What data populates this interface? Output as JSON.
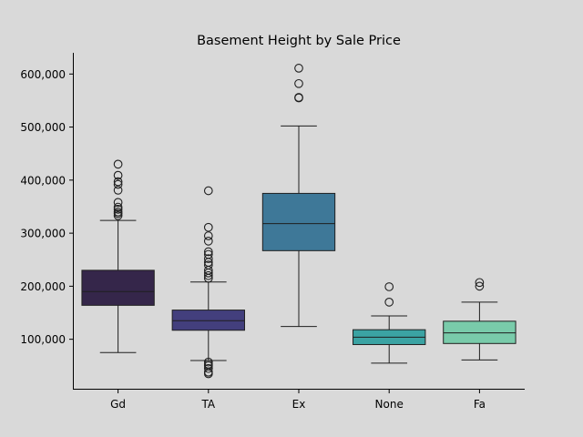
{
  "chart_data": {
    "type": "boxplot",
    "title": "Basement Height by Sale Price",
    "xlabel": "",
    "ylabel": "",
    "ylim": [
      5000,
      640000
    ],
    "yticks": [
      100000,
      200000,
      300000,
      400000,
      500000,
      600000
    ],
    "ytick_labels": [
      "100,000",
      "200,000",
      "300,000",
      "400,000",
      "500,000",
      "600,000"
    ],
    "grid": false,
    "legend": "none",
    "categories": [
      "Gd",
      "TA",
      "Ex",
      "None",
      "Fa"
    ],
    "boxes": [
      {
        "category": "Gd",
        "color": "#35264a",
        "whisker_low": 75000,
        "q1": 164000,
        "median": 190000,
        "q3": 230000,
        "whisker_high": 324000,
        "outliers": [
          333000,
          337000,
          340000,
          345000,
          349000,
          358000,
          381000,
          392000,
          397000,
          409000,
          430000
        ]
      },
      {
        "category": "TA",
        "color": "#433f7d",
        "whisker_low": 60000,
        "q1": 117000,
        "median": 135000,
        "q3": 155000,
        "whisker_high": 208000,
        "outliers": [
          35000,
          38000,
          45000,
          50000,
          53000,
          57000,
          215000,
          220000,
          225000,
          230000,
          240000,
          245000,
          252000,
          260000,
          265000,
          285000,
          295000,
          311000,
          380000
        ]
      },
      {
        "category": "Ex",
        "color": "#3e7898",
        "whisker_low": 124000,
        "q1": 267000,
        "median": 318000,
        "q3": 375000,
        "whisker_high": 502000,
        "outliers": [
          555000,
          556000,
          582000,
          611000
        ]
      },
      {
        "category": "None",
        "color": "#3ba3a3",
        "whisker_low": 55000,
        "q1": 90000,
        "median": 104000,
        "q3": 118000,
        "whisker_high": 144000,
        "outliers": [
          170000,
          199000
        ]
      },
      {
        "category": "Fa",
        "color": "#79cbaa",
        "whisker_low": 61000,
        "q1": 92000,
        "median": 112000,
        "q3": 134000,
        "whisker_high": 170000,
        "outliers": [
          200000,
          207000
        ]
      }
    ]
  }
}
